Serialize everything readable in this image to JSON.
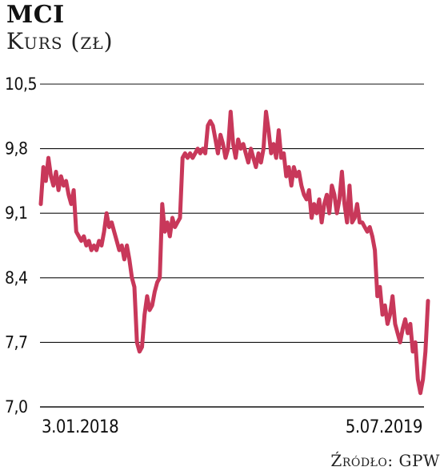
{
  "header": {
    "title": "MCI",
    "subtitle": "Kurs (zł)"
  },
  "footer": {
    "source": "Źródło: GPW"
  },
  "chart_data": {
    "type": "line",
    "title": "MCI",
    "ylabel": "Kurs (zł)",
    "xlabel": "",
    "ylim": [
      7.0,
      10.5
    ],
    "yticks": [
      "10,5",
      "9,8",
      "9,1",
      "8,4",
      "7,7",
      "7,0"
    ],
    "yticks_values": [
      10.5,
      9.8,
      9.1,
      8.4,
      7.7,
      7.0
    ],
    "xticks": [
      "3.01.2018",
      "5.07.2019"
    ],
    "grid": "horizontal",
    "line_color": "#c8385a",
    "series": [
      {
        "values": [
          9.2,
          9.6,
          9.45,
          9.7,
          9.5,
          9.4,
          9.55,
          9.35,
          9.5,
          9.4,
          9.45,
          9.3,
          9.2,
          9.35,
          8.9,
          8.85,
          8.8,
          8.85,
          8.75,
          8.8,
          8.7,
          8.75,
          8.7,
          8.8,
          8.75,
          8.9,
          9.1,
          8.95,
          9.0,
          8.9,
          8.8,
          8.7,
          8.75,
          8.6,
          8.75,
          8.6,
          8.4,
          8.3,
          7.7,
          7.6,
          7.65,
          8.0,
          8.2,
          8.05,
          8.1,
          8.25,
          8.35,
          8.4,
          9.2,
          8.9,
          9.0,
          8.85,
          9.05,
          8.95,
          9.0,
          9.05,
          9.7,
          9.75,
          9.7,
          9.75,
          9.7,
          9.75,
          9.8,
          9.75,
          9.8,
          9.75,
          10.05,
          10.1,
          10.05,
          9.9,
          9.75,
          9.95,
          9.85,
          9.7,
          9.8,
          10.2,
          9.85,
          9.7,
          9.9,
          9.8,
          9.85,
          9.75,
          9.65,
          9.8,
          9.7,
          9.6,
          9.75,
          9.65,
          9.8,
          10.2,
          10.0,
          9.75,
          9.85,
          9.7,
          10.0,
          9.7,
          9.75,
          9.5,
          9.6,
          9.4,
          9.6,
          9.5,
          9.55,
          9.4,
          9.3,
          9.25,
          9.35,
          9.05,
          9.2,
          9.1,
          9.25,
          9.0,
          9.2,
          9.3,
          9.1,
          9.4,
          9.3,
          9.1,
          9.25,
          9.55,
          9.2,
          9.0,
          9.4,
          9.0,
          9.05,
          9.2,
          9.0,
          9.0,
          8.95,
          8.9,
          8.95,
          8.85,
          8.7,
          8.2,
          8.3,
          8.0,
          8.1,
          7.9,
          8.0,
          8.2,
          7.9,
          7.8,
          7.7,
          7.85,
          7.95,
          7.8,
          7.9,
          7.6,
          7.7,
          7.3,
          7.15,
          7.3,
          7.6,
          8.15
        ]
      }
    ]
  }
}
